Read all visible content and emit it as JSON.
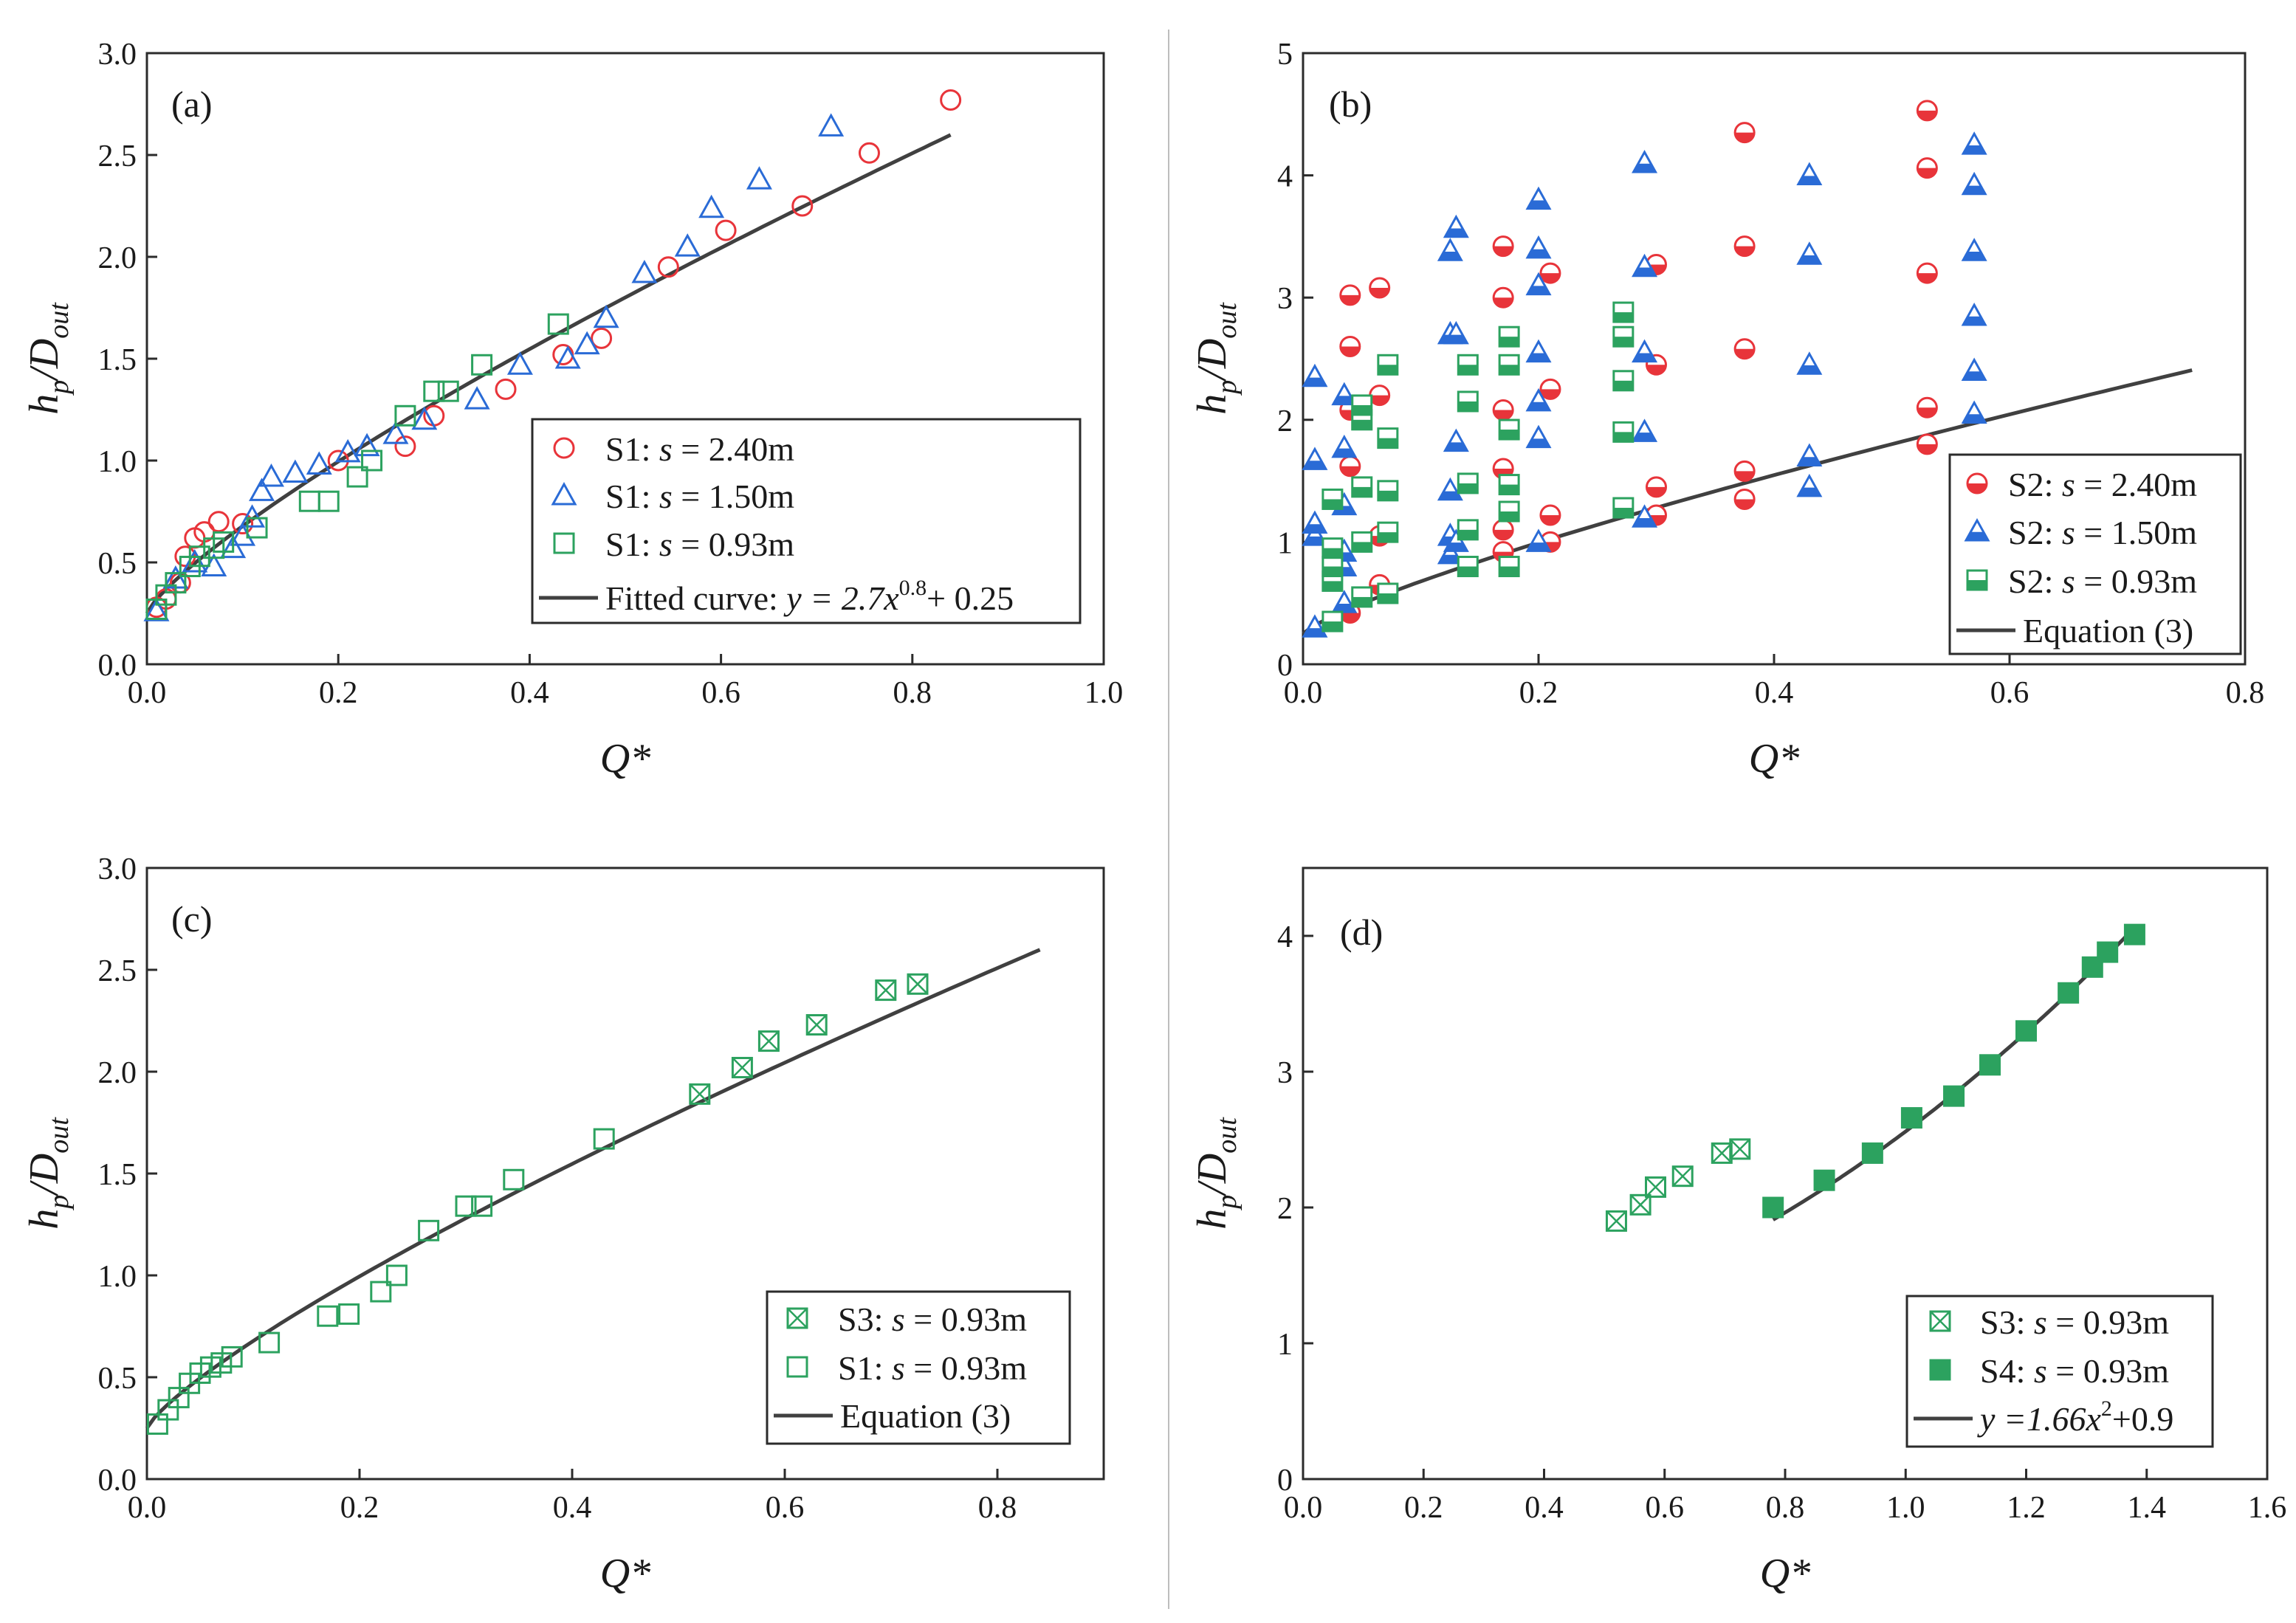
{
  "colors": {
    "red": "#e8343a",
    "blue": "#2a6bd6",
    "green": "#2ca25f",
    "curve": "#404040"
  },
  "chart_data": [
    {
      "id": "a",
      "type": "scatter",
      "panel_label": "(a)",
      "xlim": [
        0,
        1.0
      ],
      "ylim": [
        0,
        3.0
      ],
      "xticks": [
        0.0,
        0.2,
        0.4,
        0.6,
        0.8,
        1.0
      ],
      "yticks": [
        0.0,
        0.5,
        1.0,
        1.5,
        2.0,
        2.5,
        3.0
      ],
      "xdecimals": 1,
      "ydecimals": 1,
      "xlabel": "Q*",
      "ylabel": {
        "main": "h",
        "sub1": "p",
        "mid": "/D",
        "sub2": "out"
      },
      "legend_position": "bottom-right",
      "series": [
        {
          "name": "S1: s = 2.40m",
          "prefix": "S1: ",
          "value": " = 2.40m",
          "marker": "circle-open",
          "color": "#e8343a",
          "points": [
            [
              0.01,
              0.28
            ],
            [
              0.02,
              0.32
            ],
            [
              0.035,
              0.4
            ],
            [
              0.04,
              0.53
            ],
            [
              0.05,
              0.62
            ],
            [
              0.06,
              0.65
            ],
            [
              0.075,
              0.7
            ],
            [
              0.1,
              0.69
            ],
            [
              0.2,
              1.0
            ],
            [
              0.27,
              1.07
            ],
            [
              0.3,
              1.22
            ],
            [
              0.375,
              1.35
            ],
            [
              0.435,
              1.52
            ],
            [
              0.475,
              1.6
            ],
            [
              0.545,
              1.95
            ],
            [
              0.605,
              2.13
            ],
            [
              0.685,
              2.25
            ],
            [
              0.755,
              2.51
            ],
            [
              0.84,
              2.77
            ]
          ]
        },
        {
          "name": "S1: s = 1.50m",
          "prefix": "S1: ",
          "value": " = 1.50m",
          "marker": "triangle-open",
          "color": "#2a6bd6",
          "points": [
            [
              0.01,
              0.26
            ],
            [
              0.03,
              0.42
            ],
            [
              0.05,
              0.5
            ],
            [
              0.07,
              0.48
            ],
            [
              0.09,
              0.57
            ],
            [
              0.1,
              0.63
            ],
            [
              0.11,
              0.72
            ],
            [
              0.12,
              0.85
            ],
            [
              0.13,
              0.92
            ],
            [
              0.155,
              0.94
            ],
            [
              0.18,
              0.98
            ],
            [
              0.21,
              1.04
            ],
            [
              0.23,
              1.07
            ],
            [
              0.26,
              1.13
            ],
            [
              0.29,
              1.2
            ],
            [
              0.345,
              1.3
            ],
            [
              0.39,
              1.47
            ],
            [
              0.44,
              1.5
            ],
            [
              0.46,
              1.57
            ],
            [
              0.48,
              1.7
            ],
            [
              0.52,
              1.92
            ],
            [
              0.565,
              2.05
            ],
            [
              0.59,
              2.24
            ],
            [
              0.64,
              2.38
            ],
            [
              0.715,
              2.64
            ]
          ]
        },
        {
          "name": "S1: s = 0.93m",
          "prefix": "S1: ",
          "value": " = 0.93m",
          "marker": "square-open",
          "color": "#2ca25f",
          "points": [
            [
              0.01,
              0.27
            ],
            [
              0.02,
              0.34
            ],
            [
              0.03,
              0.4
            ],
            [
              0.045,
              0.48
            ],
            [
              0.055,
              0.53
            ],
            [
              0.07,
              0.57
            ],
            [
              0.08,
              0.6
            ],
            [
              0.115,
              0.67
            ],
            [
              0.17,
              0.8
            ],
            [
              0.19,
              0.8
            ],
            [
              0.22,
              0.92
            ],
            [
              0.235,
              1.0
            ],
            [
              0.27,
              1.22
            ],
            [
              0.3,
              1.34
            ],
            [
              0.315,
              1.34
            ],
            [
              0.35,
              1.47
            ],
            [
              0.43,
              1.67
            ]
          ]
        }
      ],
      "curve": {
        "label_prefix": "Fitted curve: ",
        "label_formula": "y = 2.7x",
        "label_exp": "0.8",
        "label_suffix": "+ 0.25",
        "formula": "2.7*x^0.8+0.25",
        "domain": [
          0,
          0.84
        ]
      }
    },
    {
      "id": "b",
      "type": "scatter",
      "panel_label": "(b)",
      "xlim": [
        0,
        0.8
      ],
      "ylim": [
        0,
        5
      ],
      "xticks": [
        0.0,
        0.2,
        0.4,
        0.6,
        0.8
      ],
      "yticks": [
        0,
        1,
        2,
        3,
        4,
        5
      ],
      "xdecimals": 1,
      "ydecimals": 0,
      "xlabel": "Q*",
      "ylabel": {
        "main": "h",
        "sub1": "p",
        "mid": "/D",
        "sub2": "out"
      },
      "legend_position": "bottom-right",
      "series": [
        {
          "name": "S2: s = 2.40m",
          "prefix": "S2: ",
          "value": " = 2.40m",
          "marker": "circle-half",
          "color": "#e8343a",
          "points": [
            [
              0.04,
              0.42
            ],
            [
              0.04,
              1.62
            ],
            [
              0.04,
              2.08
            ],
            [
              0.04,
              2.6
            ],
            [
              0.04,
              3.02
            ],
            [
              0.065,
              0.65
            ],
            [
              0.065,
              1.05
            ],
            [
              0.065,
              2.2
            ],
            [
              0.065,
              3.08
            ],
            [
              0.17,
              0.92
            ],
            [
              0.17,
              1.1
            ],
            [
              0.17,
              1.6
            ],
            [
              0.17,
              2.08
            ],
            [
              0.17,
              3.0
            ],
            [
              0.17,
              3.42
            ],
            [
              0.21,
              1.0
            ],
            [
              0.21,
              1.22
            ],
            [
              0.21,
              2.25
            ],
            [
              0.21,
              3.2
            ],
            [
              0.3,
              1.22
            ],
            [
              0.3,
              1.45
            ],
            [
              0.3,
              2.45
            ],
            [
              0.3,
              3.27
            ],
            [
              0.375,
              1.35
            ],
            [
              0.375,
              1.58
            ],
            [
              0.375,
              2.58
            ],
            [
              0.375,
              3.42
            ],
            [
              0.375,
              4.35
            ],
            [
              0.53,
              1.8
            ],
            [
              0.53,
              2.1
            ],
            [
              0.53,
              3.2
            ],
            [
              0.53,
              4.06
            ],
            [
              0.53,
              4.53
            ]
          ]
        },
        {
          "name": "S2: s = 1.50m",
          "prefix": "S2: ",
          "value": " = 1.50m",
          "marker": "triangle-half",
          "color": "#2a6bd6",
          "points": [
            [
              0.01,
              0.3
            ],
            [
              0.01,
              1.05
            ],
            [
              0.01,
              1.15
            ],
            [
              0.01,
              1.67
            ],
            [
              0.01,
              2.35
            ],
            [
              0.035,
              0.5
            ],
            [
              0.035,
              0.8
            ],
            [
              0.035,
              0.92
            ],
            [
              0.035,
              1.3
            ],
            [
              0.035,
              1.77
            ],
            [
              0.035,
              2.2
            ],
            [
              0.125,
              0.9
            ],
            [
              0.125,
              1.05
            ],
            [
              0.125,
              1.42
            ],
            [
              0.125,
              2.7
            ],
            [
              0.125,
              3.38
            ],
            [
              0.13,
              1.0
            ],
            [
              0.13,
              1.82
            ],
            [
              0.13,
              2.7
            ],
            [
              0.13,
              3.57
            ],
            [
              0.2,
              1.0
            ],
            [
              0.2,
              1.85
            ],
            [
              0.2,
              2.15
            ],
            [
              0.2,
              2.55
            ],
            [
              0.2,
              3.1
            ],
            [
              0.2,
              3.4
            ],
            [
              0.2,
              3.8
            ],
            [
              0.29,
              1.2
            ],
            [
              0.29,
              1.9
            ],
            [
              0.29,
              2.55
            ],
            [
              0.29,
              3.25
            ],
            [
              0.29,
              4.1
            ],
            [
              0.43,
              1.45
            ],
            [
              0.43,
              1.7
            ],
            [
              0.43,
              2.45
            ],
            [
              0.43,
              3.35
            ],
            [
              0.43,
              4.0
            ],
            [
              0.57,
              2.05
            ],
            [
              0.57,
              2.4
            ],
            [
              0.57,
              2.85
            ],
            [
              0.57,
              3.38
            ],
            [
              0.57,
              3.92
            ],
            [
              0.57,
              4.25
            ]
          ]
        },
        {
          "name": "S2: s = 0.93m",
          "prefix": "S2: ",
          "value": " = 0.93m",
          "marker": "square-half",
          "color": "#2ca25f",
          "points": [
            [
              0.025,
              0.35
            ],
            [
              0.025,
              0.68
            ],
            [
              0.025,
              0.8
            ],
            [
              0.025,
              0.95
            ],
            [
              0.025,
              1.35
            ],
            [
              0.05,
              0.55
            ],
            [
              0.05,
              1.0
            ],
            [
              0.05,
              1.45
            ],
            [
              0.05,
              2.0
            ],
            [
              0.05,
              2.12
            ],
            [
              0.072,
              0.58
            ],
            [
              0.072,
              1.08
            ],
            [
              0.072,
              1.42
            ],
            [
              0.072,
              1.85
            ],
            [
              0.072,
              2.45
            ],
            [
              0.14,
              0.8
            ],
            [
              0.14,
              1.1
            ],
            [
              0.14,
              1.48
            ],
            [
              0.14,
              2.15
            ],
            [
              0.14,
              2.45
            ],
            [
              0.175,
              0.8
            ],
            [
              0.175,
              1.25
            ],
            [
              0.175,
              1.47
            ],
            [
              0.175,
              1.92
            ],
            [
              0.175,
              2.45
            ],
            [
              0.175,
              2.68
            ],
            [
              0.272,
              1.28
            ],
            [
              0.272,
              1.9
            ],
            [
              0.272,
              2.32
            ],
            [
              0.272,
              2.68
            ],
            [
              0.272,
              2.88
            ]
          ]
        }
      ],
      "curve": {
        "label_text": "Equation (3)",
        "formula": "2.7*x^0.8+0.25",
        "domain": [
          0,
          0.755
        ]
      }
    },
    {
      "id": "c",
      "type": "scatter",
      "panel_label": "(c)",
      "xlim": [
        0,
        0.9
      ],
      "ylim": [
        0,
        3.0
      ],
      "xticks": [
        0.0,
        0.2,
        0.4,
        0.6,
        0.8
      ],
      "yticks": [
        0.0,
        0.5,
        1.0,
        1.5,
        2.0,
        2.5,
        3.0
      ],
      "xdecimals": 1,
      "ydecimals": 1,
      "xlabel": "Q*",
      "ylabel": {
        "main": "h",
        "sub1": "p",
        "mid": "/D",
        "sub2": "out"
      },
      "legend_position": "bottom-right",
      "series": [
        {
          "name": "S3: s = 0.93m",
          "prefix": "S3: ",
          "value": " = 0.93m",
          "marker": "square-x",
          "color": "#2ca25f",
          "points": [
            [
              0.52,
              1.89
            ],
            [
              0.56,
              2.02
            ],
            [
              0.585,
              2.15
            ],
            [
              0.63,
              2.23
            ],
            [
              0.695,
              2.4
            ],
            [
              0.725,
              2.43
            ]
          ]
        },
        {
          "name": "S1: s = 0.93m",
          "prefix": "S1: ",
          "value": " = 0.93m",
          "marker": "square-open",
          "color": "#2ca25f",
          "points": [
            [
              0.01,
              0.27
            ],
            [
              0.02,
              0.34
            ],
            [
              0.03,
              0.4
            ],
            [
              0.04,
              0.47
            ],
            [
              0.05,
              0.52
            ],
            [
              0.06,
              0.55
            ],
            [
              0.07,
              0.57
            ],
            [
              0.08,
              0.6
            ],
            [
              0.115,
              0.67
            ],
            [
              0.17,
              0.8
            ],
            [
              0.19,
              0.81
            ],
            [
              0.22,
              0.92
            ],
            [
              0.235,
              1.0
            ],
            [
              0.265,
              1.22
            ],
            [
              0.3,
              1.34
            ],
            [
              0.315,
              1.34
            ],
            [
              0.345,
              1.47
            ],
            [
              0.43,
              1.67
            ]
          ]
        }
      ],
      "curve": {
        "label_text": "Equation (3)",
        "formula": "2.7*x^0.8+0.25",
        "domain": [
          0,
          0.84
        ]
      }
    },
    {
      "id": "d",
      "type": "scatter",
      "panel_label": "(d)",
      "xlim": [
        0,
        1.6
      ],
      "ylim": [
        0,
        4.5
      ],
      "xticks": [
        0.0,
        0.2,
        0.4,
        0.6,
        0.8,
        1.0,
        1.2,
        1.4,
        1.6
      ],
      "yticks": [
        0,
        1,
        2,
        3,
        4
      ],
      "xdecimals": 1,
      "ydecimals": 0,
      "xlabel": "Q*",
      "ylabel": {
        "main": "h",
        "sub1": "p",
        "mid": "/D",
        "sub2": "out"
      },
      "legend_position": "bottom-right",
      "series": [
        {
          "name": "S3: s = 0.93m",
          "prefix": "S3: ",
          "value": " = 0.93m",
          "marker": "square-x",
          "color": "#2ca25f",
          "points": [
            [
              0.52,
              1.9
            ],
            [
              0.56,
              2.02
            ],
            [
              0.585,
              2.15
            ],
            [
              0.63,
              2.23
            ],
            [
              0.695,
              2.4
            ],
            [
              0.725,
              2.43
            ]
          ]
        },
        {
          "name": "S4: s = 0.93m",
          "prefix": "S4: ",
          "value": " = 0.93m",
          "marker": "square-filled",
          "color": "#2ca25f",
          "points": [
            [
              0.78,
              2.0
            ],
            [
              0.865,
              2.2
            ],
            [
              0.945,
              2.4
            ],
            [
              1.01,
              2.66
            ],
            [
              1.08,
              2.82
            ],
            [
              1.14,
              3.05
            ],
            [
              1.2,
              3.3
            ],
            [
              1.27,
              3.58
            ],
            [
              1.31,
              3.77
            ],
            [
              1.335,
              3.88
            ],
            [
              1.38,
              4.01
            ]
          ]
        }
      ],
      "curve": {
        "label_formula": "y =1.66x",
        "label_exp": "2",
        "label_suffix": "+0.9",
        "formula": "1.66*x^2+0.9",
        "domain": [
          0.78,
          1.38
        ]
      }
    }
  ]
}
